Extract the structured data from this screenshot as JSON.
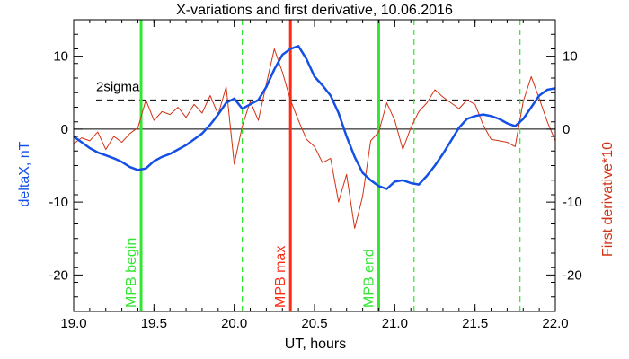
{
  "chart_data": {
    "type": "line",
    "title": "X-variations and first derivative, 10.06.2016",
    "xlabel": "UT, hours",
    "ylabel_left": "deltaX, nT",
    "ylabel_right": "First derivative*10",
    "xlim": [
      19.0,
      22.0
    ],
    "ylim": [
      -25,
      15
    ],
    "x_ticks": [
      19.0,
      19.5,
      20.0,
      20.5,
      21.0,
      21.5,
      22.0
    ],
    "x_tick_labels": [
      "19.0",
      "19.5",
      "20.0",
      "20.5",
      "21.0",
      "21.5",
      "22.0"
    ],
    "y_ticks": [
      -20,
      -10,
      0,
      10
    ],
    "y_tick_labels": [
      "-20",
      "-10",
      "0",
      "10"
    ],
    "colors": {
      "deltax": "#1450e6",
      "derivative": "#d23214",
      "mpb": "#32e632",
      "max": "#ff2a14",
      "axis": "#000000"
    },
    "series": [
      {
        "name": "deltaX",
        "axis": "left",
        "x": [
          19.0,
          19.05,
          19.1,
          19.15,
          19.2,
          19.25,
          19.3,
          19.35,
          19.4,
          19.45,
          19.5,
          19.55,
          19.6,
          19.65,
          19.7,
          19.75,
          19.8,
          19.85,
          19.9,
          19.95,
          20.0,
          20.05,
          20.1,
          20.15,
          20.2,
          20.25,
          20.3,
          20.35,
          20.4,
          20.45,
          20.5,
          20.55,
          20.6,
          20.65,
          20.7,
          20.75,
          20.8,
          20.85,
          20.9,
          20.95,
          21.0,
          21.05,
          21.1,
          21.15,
          21.2,
          21.25,
          21.3,
          21.35,
          21.4,
          21.45,
          21.5,
          21.55,
          21.6,
          21.65,
          21.7,
          21.75,
          21.8,
          21.85,
          21.9,
          21.95,
          22.0
        ],
        "y": [
          -1.0,
          -1.8,
          -2.6,
          -3.2,
          -3.6,
          -4.0,
          -4.5,
          -5.2,
          -5.6,
          -5.4,
          -4.4,
          -3.8,
          -3.4,
          -2.8,
          -2.2,
          -1.4,
          -0.6,
          0.6,
          2.0,
          3.6,
          4.2,
          2.8,
          3.4,
          4.0,
          5.8,
          8.2,
          10.2,
          11.0,
          11.4,
          9.6,
          7.2,
          6.0,
          4.6,
          2.2,
          -1.0,
          -3.8,
          -6.0,
          -7.0,
          -7.8,
          -8.2,
          -7.2,
          -7.0,
          -7.4,
          -7.6,
          -6.4,
          -5.0,
          -3.4,
          -1.6,
          0.2,
          1.4,
          1.8,
          2.0,
          1.8,
          1.4,
          0.8,
          0.4,
          1.4,
          3.0,
          4.6,
          5.4,
          5.6
        ]
      },
      {
        "name": "First derivative*10",
        "axis": "right",
        "x": [
          19.0,
          19.05,
          19.1,
          19.15,
          19.2,
          19.25,
          19.3,
          19.35,
          19.4,
          19.45,
          19.5,
          19.55,
          19.6,
          19.65,
          19.7,
          19.75,
          19.8,
          19.85,
          19.9,
          19.95,
          20.0,
          20.05,
          20.1,
          20.15,
          20.2,
          20.25,
          20.3,
          20.35,
          20.4,
          20.45,
          20.5,
          20.55,
          20.6,
          20.65,
          20.7,
          20.75,
          20.8,
          20.85,
          20.9,
          20.95,
          21.0,
          21.05,
          21.1,
          21.15,
          21.2,
          21.25,
          21.3,
          21.35,
          21.4,
          21.45,
          21.5,
          21.55,
          21.6,
          21.65,
          21.7,
          21.75,
          21.8,
          21.85,
          21.9,
          21.95,
          22.0
        ],
        "y": [
          -2.0,
          -1.2,
          -1.6,
          -0.4,
          -2.8,
          -1.0,
          -1.8,
          -0.6,
          0.2,
          4.0,
          1.2,
          2.4,
          2.0,
          3.0,
          1.6,
          3.4,
          2.2,
          4.6,
          2.0,
          5.8,
          -4.8,
          0.4,
          3.8,
          1.2,
          6.2,
          11.0,
          7.8,
          4.0,
          1.2,
          -1.4,
          -2.4,
          -4.6,
          -4.0,
          -10.0,
          -6.2,
          -13.6,
          -9.2,
          -1.6,
          -0.4,
          3.6,
          1.2,
          -2.8,
          0.2,
          2.4,
          3.6,
          5.4,
          4.4,
          3.6,
          2.8,
          4.0,
          3.4,
          0.6,
          -1.4,
          -1.6,
          -1.8,
          -2.4,
          3.8,
          7.2,
          4.2,
          1.0,
          -1.6
        ]
      }
    ],
    "reference_lines": {
      "zero": 0,
      "sigma_level": 4.0,
      "sigma_label": "2sigma"
    },
    "markers": [
      {
        "x": 19.42,
        "label": "MPB begin",
        "style": "solid",
        "role": "mpb"
      },
      {
        "x": 20.05,
        "label": "",
        "style": "dashed",
        "role": "mpb"
      },
      {
        "x": 20.35,
        "label": "MPB max",
        "style": "solid",
        "role": "max"
      },
      {
        "x": 20.9,
        "label": "MPB end",
        "style": "solid",
        "role": "mpb"
      },
      {
        "x": 21.12,
        "label": "",
        "style": "dashed",
        "role": "mpb"
      },
      {
        "x": 21.78,
        "label": "",
        "style": "dashed",
        "role": "mpb"
      }
    ]
  }
}
